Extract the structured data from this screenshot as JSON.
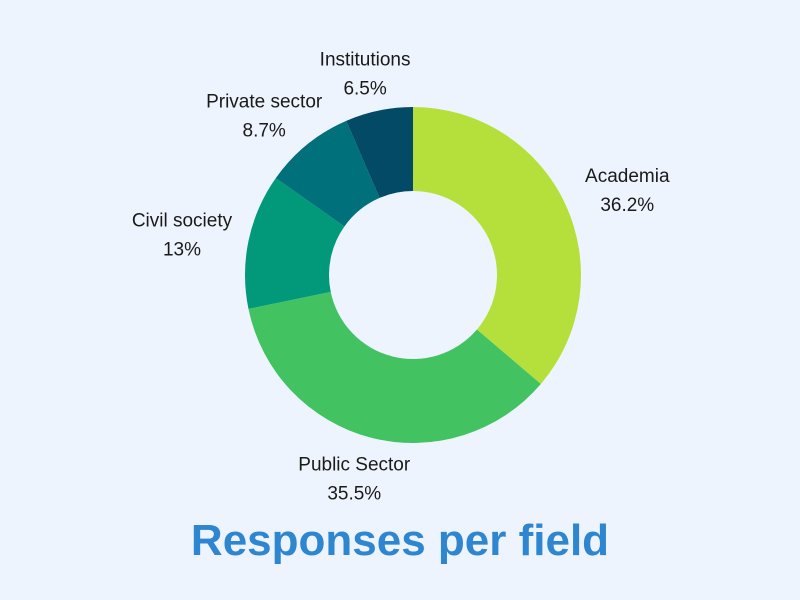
{
  "background": "#eef4fd",
  "chart_data": {
    "type": "pie",
    "variant": "donut",
    "title": "Responses per field",
    "title_color": "#2e86d1",
    "slices": [
      {
        "label": "Academia",
        "value": 36.2,
        "value_label": "36.2%",
        "color": "#b5e03c"
      },
      {
        "label": "Public Sector",
        "value": 35.5,
        "value_label": "35.5%",
        "color": "#43c262"
      },
      {
        "label": "Civil society",
        "value": 13,
        "value_label": "13%",
        "color": "#02997a"
      },
      {
        "label": "Private sector",
        "value": 8.7,
        "value_label": "8.7%",
        "color": "#00717a"
      },
      {
        "label": "Institutions",
        "value": 6.5,
        "value_label": "6.5%",
        "color": "#034a66"
      }
    ],
    "legend": "none",
    "grid": false
  }
}
